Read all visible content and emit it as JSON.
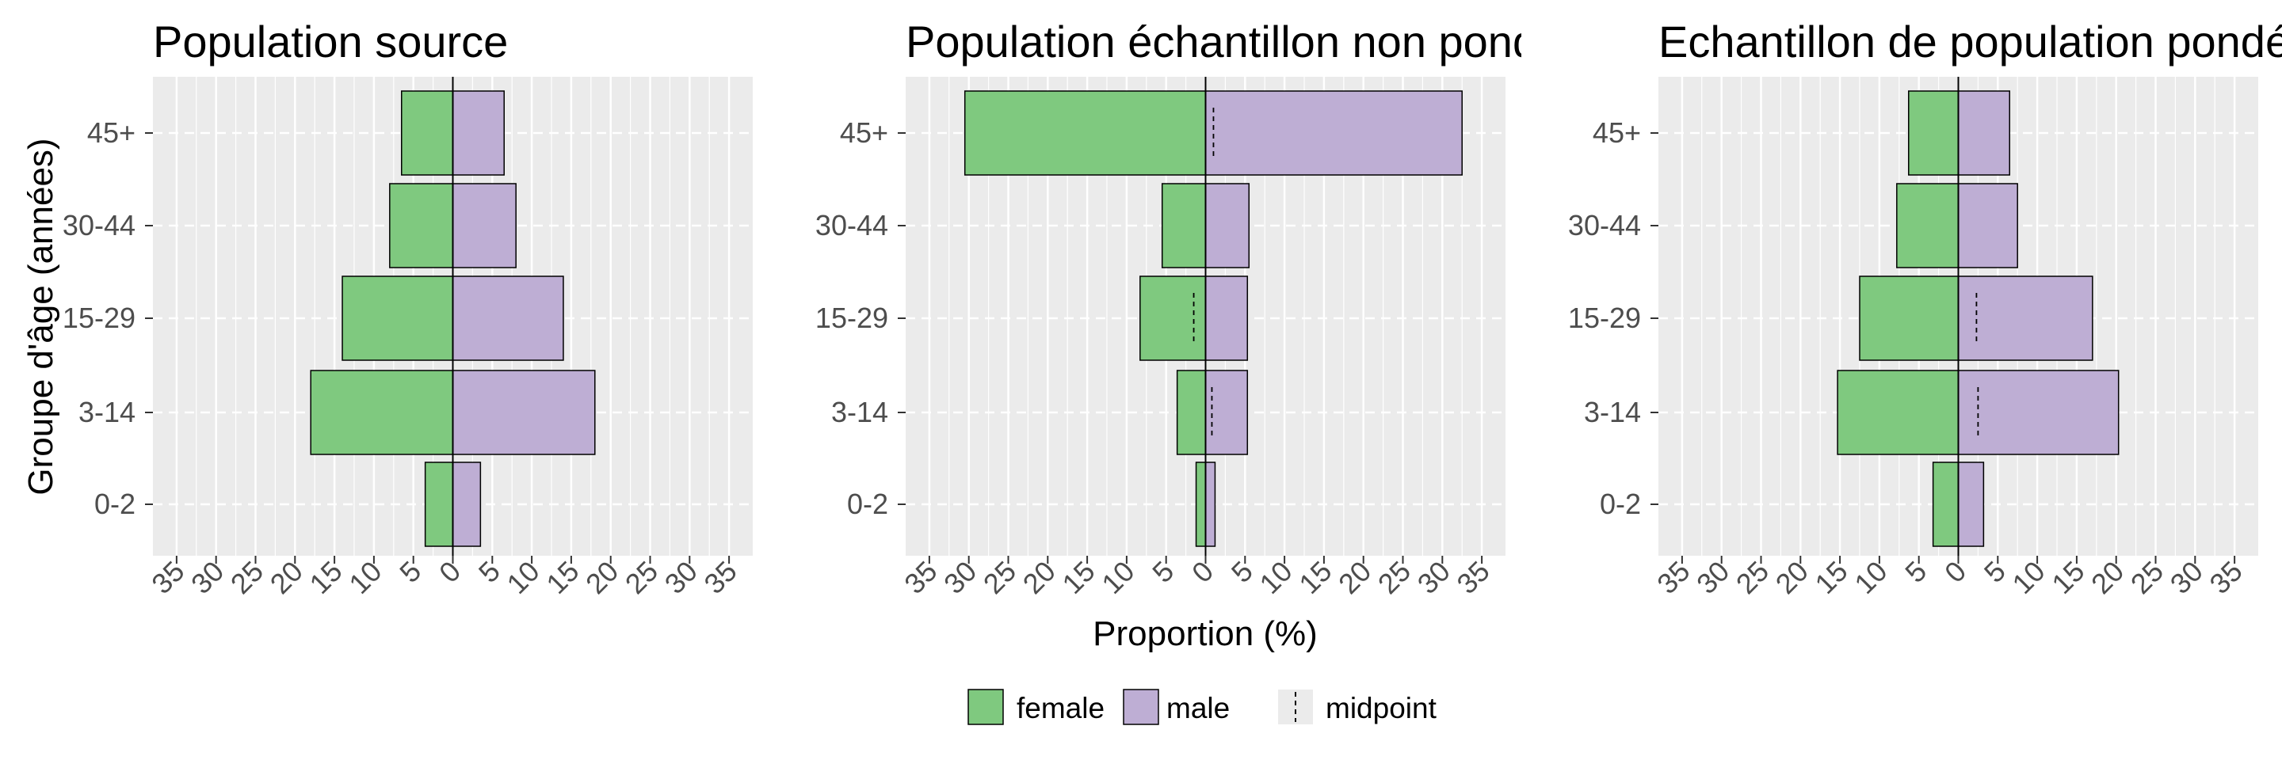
{
  "chart_data": {
    "type": "bar",
    "orientation": "horizontal-pyramid",
    "categories": [
      "0-2",
      "3-14",
      "15-29",
      "30-44",
      "45+"
    ],
    "ylabel": "Groupe d'âge (années)",
    "xlabel": "Proportion (%)",
    "xlim": [
      -38,
      38
    ],
    "x_ticks": [
      -35,
      -30,
      -25,
      -20,
      -15,
      -10,
      -5,
      0,
      5,
      10,
      15,
      20,
      25,
      30,
      35
    ],
    "x_tick_labels": [
      "35",
      "30",
      "25",
      "20",
      "15",
      "10",
      "5",
      "0",
      "5",
      "10",
      "15",
      "20",
      "25",
      "30",
      "35"
    ],
    "grid": true,
    "legend_position": "bottom",
    "legend": [
      {
        "key": "female",
        "label": "female",
        "color": "#7fc97f",
        "kind": "fill"
      },
      {
        "key": "male",
        "label": "male",
        "color": "#beaed4",
        "kind": "fill"
      },
      {
        "key": "midpoint",
        "label": "midpoint",
        "kind": "dashed-line"
      }
    ],
    "panels": [
      {
        "title": "Population source",
        "series": [
          {
            "name": "female",
            "values": [
              3.5,
              18,
              14,
              8,
              6.5
            ]
          },
          {
            "name": "male",
            "values": [
              3.5,
              18,
              14,
              8,
              6.5
            ]
          }
        ],
        "midpoint": [
          0,
          0,
          0,
          0,
          0
        ]
      },
      {
        "title": "Population échantillon non pondérée",
        "series": [
          {
            "name": "female",
            "values": [
              1.2,
              3.6,
              8.3,
              5.5,
              30.5
            ]
          },
          {
            "name": "male",
            "values": [
              1.2,
              5.3,
              5.3,
              5.5,
              32.5
            ]
          }
        ],
        "midpoint": [
          0,
          0.8,
          -1.5,
          0,
          1.0
        ]
      },
      {
        "title": "Echantillon de population pondérée",
        "series": [
          {
            "name": "female",
            "values": [
              3.2,
              15.3,
              12.5,
              7.8,
              6.3
            ]
          },
          {
            "name": "male",
            "values": [
              3.2,
              20.3,
              17,
              7.5,
              6.5
            ]
          }
        ],
        "midpoint": [
          0,
          2.5,
          2.3,
          0,
          0
        ]
      }
    ]
  }
}
